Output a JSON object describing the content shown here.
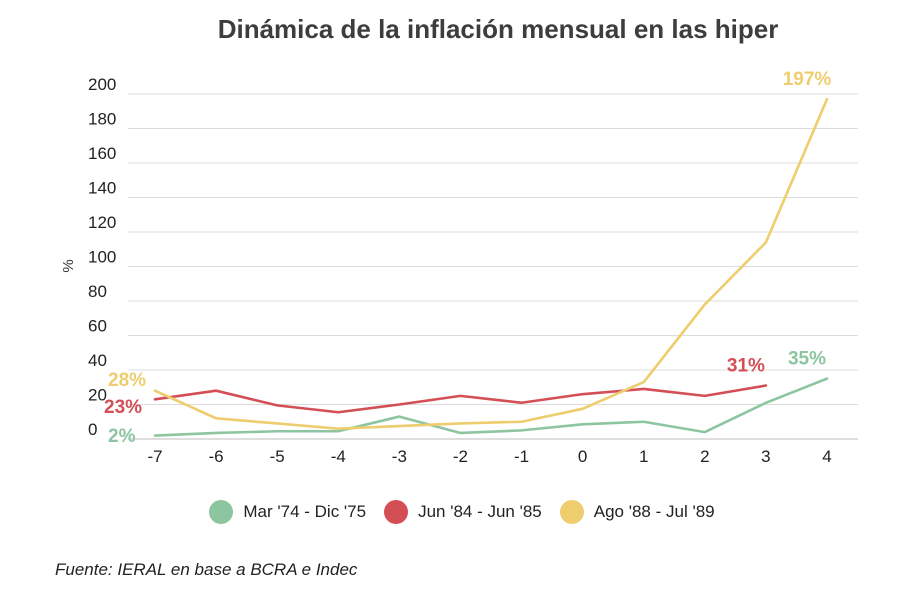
{
  "chart_data": {
    "type": "line",
    "title": "Dinámica de la inflación mensual en las hiper",
    "ylabel": "%",
    "xlabel": "",
    "x": [
      -7,
      -6,
      -5,
      -4,
      -3,
      -2,
      -1,
      0,
      1,
      2,
      3,
      4
    ],
    "x_tick_labels": [
      "-7",
      "-6",
      "-5",
      "-4",
      "-3",
      "-2",
      "-1",
      "0",
      "1",
      "2",
      "3",
      "4"
    ],
    "y_ticks": [
      0,
      20,
      40,
      60,
      80,
      100,
      120,
      140,
      160,
      180,
      200
    ],
    "y_tick_labels": [
      "0",
      "20",
      "40",
      "60",
      "80",
      "100",
      "120",
      "140",
      "160",
      "180",
      "200"
    ],
    "ylim": [
      0,
      200
    ],
    "grid": true,
    "legend_position": "bottom",
    "series": [
      {
        "name": "Mar '74 - Dic '75",
        "color": "#8cc5a0",
        "values": [
          2,
          3.5,
          4.5,
          4.5,
          13,
          3.5,
          5,
          8.5,
          10,
          4,
          21,
          35
        ],
        "start_label": "2%",
        "end_label": "35%"
      },
      {
        "name": "Jun '84 - Jun '85",
        "color": "#d44e55",
        "values": [
          23,
          28,
          19.5,
          15.5,
          20,
          25,
          21,
          26,
          29,
          25,
          31,
          null
        ],
        "start_label": "23%",
        "end_label": "31%"
      },
      {
        "name": "Ago '88 - Jul '89",
        "color": "#eecd6e",
        "values": [
          28,
          12,
          9,
          6,
          7.5,
          9,
          10,
          17.5,
          33,
          78,
          114,
          197
        ],
        "start_label": "28%",
        "end_label": "197%"
      }
    ]
  },
  "source": "Fuente: IERAL en base a BCRA e Indec"
}
